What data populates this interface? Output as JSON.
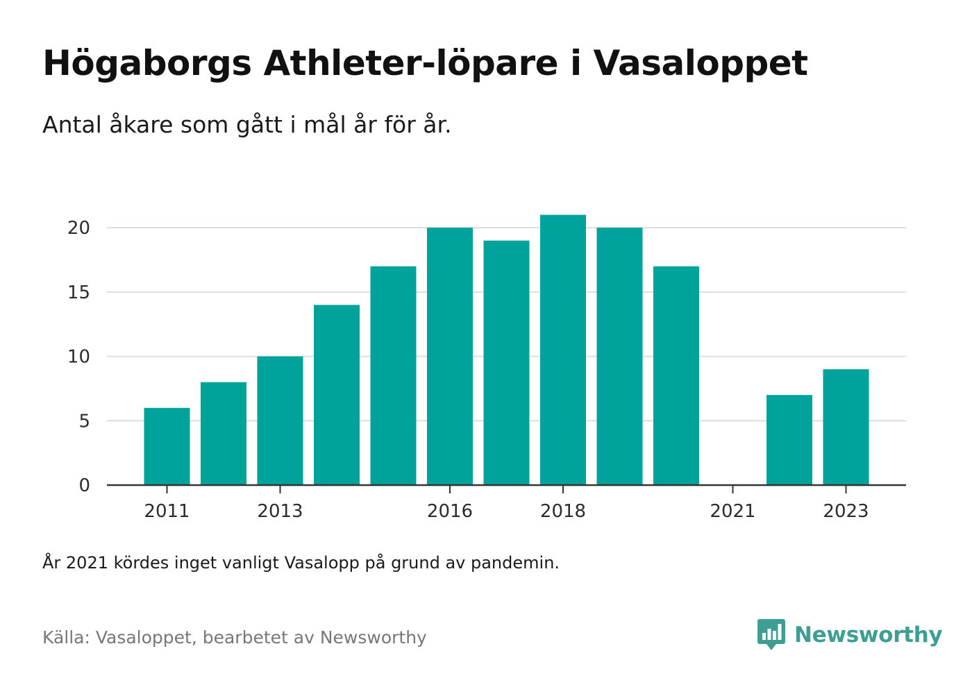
{
  "title": "Högaborgs Athleter-löpare i Vasaloppet",
  "subtitle": "Antal åkare som gått i mål år för år.",
  "note": "År 2021 kördes inget vanligt Vasalopp på grund av pandemin.",
  "source": "Källa: Vasaloppet, bearbetet av Newsworthy",
  "brand": {
    "name": "Newsworthy",
    "color": "#3f9e93",
    "icon": "newsworthy-chart-bubble-icon"
  },
  "chart_data": {
    "type": "bar",
    "categories": [
      "2011",
      "2012",
      "2013",
      "2014",
      "2015",
      "2016",
      "2017",
      "2018",
      "2019",
      "2020",
      "2021",
      "2022",
      "2023"
    ],
    "values": [
      6,
      8,
      10,
      14,
      17,
      20,
      19,
      21,
      20,
      17,
      0,
      7,
      9
    ],
    "x_tick_labels": [
      "2011",
      "2013",
      "2016",
      "2018",
      "2021",
      "2023"
    ],
    "y_ticks": [
      0,
      5,
      10,
      15,
      20
    ],
    "ylim": [
      0,
      22
    ],
    "bar_color": "#00a39b",
    "grid": true,
    "title": "",
    "xlabel": "",
    "ylabel": ""
  }
}
